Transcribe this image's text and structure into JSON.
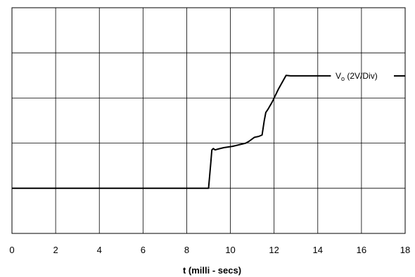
{
  "chart_data": {
    "type": "line",
    "title": "",
    "xlabel": "t (milli - secs)",
    "ylabel": "",
    "xlim": [
      0,
      18
    ],
    "ylim": [
      0,
      5
    ],
    "x_ticks": [
      "0",
      "2",
      "4",
      "6",
      "8",
      "10",
      "12",
      "14",
      "16",
      "18"
    ],
    "y_gridlines": 5,
    "grid": true,
    "legend_position": "top-right",
    "series": [
      {
        "name": "Vo (2V/Div)",
        "name_main": "V",
        "name_sub": "o",
        "name_rest": " (2V/Div)",
        "color": "#000000",
        "x": [
          0,
          9.0,
          9.1,
          9.15,
          9.22,
          9.3,
          9.45,
          9.7,
          10.1,
          10.7,
          10.85,
          11.1,
          11.3,
          11.45,
          11.55,
          11.62,
          11.72,
          11.9,
          12.2,
          12.55,
          12.75,
          14.6
        ],
        "y": [
          1.0,
          1.0,
          1.55,
          1.85,
          1.88,
          1.85,
          1.87,
          1.9,
          1.93,
          2.0,
          2.04,
          2.13,
          2.15,
          2.18,
          2.5,
          2.68,
          2.75,
          2.9,
          3.2,
          3.5,
          3.49,
          3.49
        ]
      }
    ]
  }
}
